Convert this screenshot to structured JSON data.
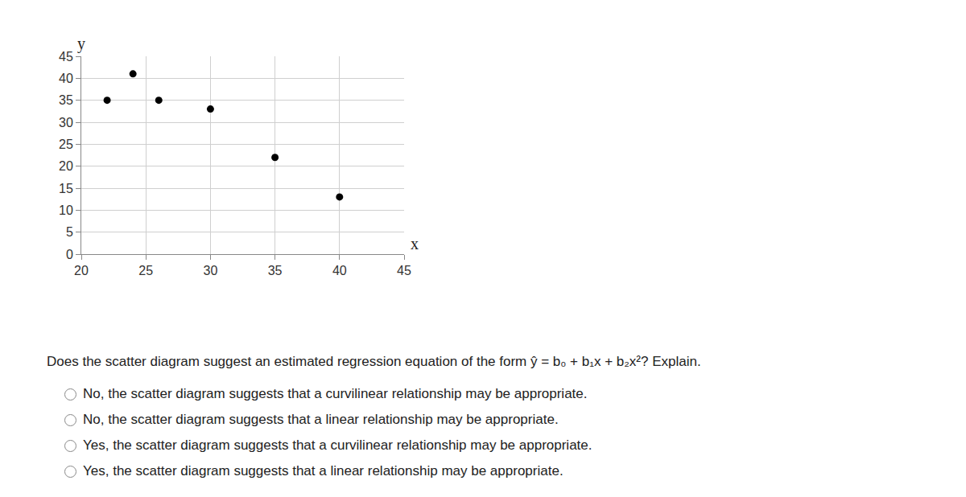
{
  "chart_data": {
    "type": "scatter",
    "x_label": "x",
    "y_label": "y",
    "x": [
      22,
      24,
      26,
      30,
      35,
      40
    ],
    "values": [
      35,
      41,
      35,
      33,
      22,
      13
    ],
    "color": "#000000",
    "marker": "circle",
    "xlim": [
      20,
      45
    ],
    "xticks": [
      20,
      25,
      30,
      35,
      40,
      45
    ],
    "ylim": [
      0,
      45
    ],
    "yticks": [
      0,
      5,
      10,
      15,
      20,
      25,
      30,
      35,
      40,
      45
    ],
    "grid": true
  },
  "question": "Does the scatter diagram suggest an estimated regression equation of the form ŷ = b₀ + b₁x + b₂x²? Explain.",
  "options": [
    "No, the scatter diagram suggests that a curvilinear relationship may be appropriate.",
    "No, the scatter diagram suggests that a linear relationship may be appropriate.",
    "Yes, the scatter diagram suggests that a curvilinear relationship may be appropriate.",
    "Yes, the scatter diagram suggests that a linear relationship may be appropriate."
  ]
}
